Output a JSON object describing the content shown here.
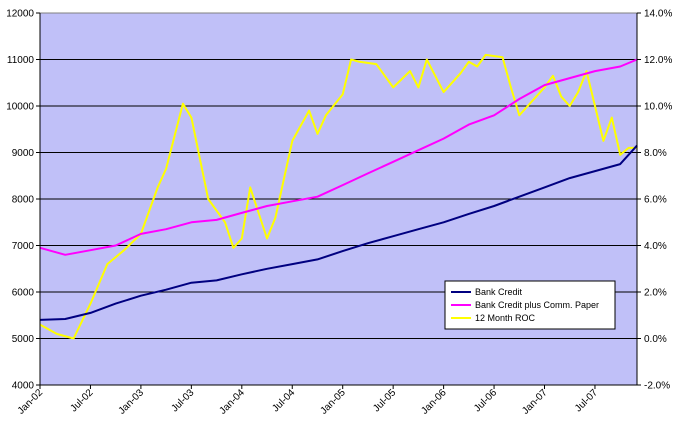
{
  "chart_data": {
    "type": "line",
    "title": "",
    "xlabel": "",
    "ylabel": "",
    "ylim": [
      4000,
      12000
    ],
    "y2lim": [
      -2.0,
      14.0
    ],
    "yticks": [
      "4000",
      "5000",
      "6000",
      "7000",
      "8000",
      "9000",
      "10000",
      "11000",
      "12000"
    ],
    "y2ticks": [
      "-2.0%",
      "0.0%",
      "2.0%",
      "4.0%",
      "6.0%",
      "8.0%",
      "10.0%",
      "12.0%",
      "14.0%"
    ],
    "xticks": [
      "Jan-02",
      "Jul-02",
      "Jan-03",
      "Jul-03",
      "Jan-04",
      "Jul-04",
      "Jan-05",
      "Jul-05",
      "Jan-06",
      "Jul-06",
      "Jan-07",
      "Jul-07"
    ],
    "x_range_months": [
      0,
      71
    ],
    "grid": "horizontal",
    "legend_position": "lower-right",
    "colors": {
      "plot_background": "#c0c0f8",
      "grid": "#000000",
      "bank_credit": "#000080",
      "bank_credit_cp": "#ff00ff",
      "roc": "#ffff00"
    },
    "series": [
      {
        "name": "Bank Credit",
        "axis": "left",
        "x": [
          0,
          3,
          6,
          9,
          12,
          15,
          18,
          21,
          24,
          27,
          30,
          33,
          36,
          39,
          42,
          45,
          48,
          51,
          54,
          57,
          60,
          63,
          66,
          69,
          71
        ],
        "values": [
          5400,
          5420,
          5550,
          5750,
          5920,
          6050,
          6200,
          6250,
          6380,
          6500,
          6600,
          6700,
          6880,
          7050,
          7200,
          7350,
          7500,
          7680,
          7850,
          8050,
          8250,
          8450,
          8600,
          8750,
          9150
        ]
      },
      {
        "name": "Bank Credit plus Comm. Paper",
        "axis": "left",
        "x": [
          0,
          3,
          6,
          9,
          12,
          15,
          18,
          21,
          24,
          27,
          30,
          33,
          36,
          39,
          42,
          45,
          48,
          51,
          54,
          57,
          60,
          63,
          66,
          69,
          71
        ],
        "values": [
          6950,
          6800,
          6900,
          7000,
          7250,
          7350,
          7500,
          7550,
          7700,
          7850,
          7950,
          8050,
          8300,
          8550,
          8800,
          9050,
          9300,
          9600,
          9800,
          10150,
          10450,
          10600,
          10750,
          10850,
          11000
        ]
      },
      {
        "name": "12 Month ROC",
        "axis": "right",
        "x": [
          0,
          2,
          4,
          6,
          8,
          10,
          12,
          14,
          15,
          17,
          18,
          20,
          22,
          23,
          24,
          25,
          27,
          28,
          30,
          32,
          33,
          34,
          36,
          37,
          38,
          40,
          42,
          44,
          45,
          46,
          48,
          50,
          51,
          52,
          53,
          55,
          56,
          57,
          58,
          60,
          61,
          62,
          63,
          64,
          65,
          66,
          67,
          68,
          69,
          70,
          71
        ],
        "values": [
          0.6,
          0.2,
          0.0,
          1.5,
          3.2,
          3.8,
          4.5,
          6.5,
          7.3,
          10.1,
          9.5,
          6.0,
          5.0,
          3.9,
          4.3,
          6.5,
          4.3,
          5.2,
          8.5,
          9.8,
          8.8,
          9.6,
          10.5,
          12.0,
          11.9,
          11.8,
          10.8,
          11.5,
          10.8,
          12.0,
          10.6,
          11.4,
          11.9,
          11.7,
          12.2,
          12.1,
          10.8,
          9.6,
          10.0,
          10.8,
          11.3,
          10.4,
          10.0,
          10.6,
          11.5,
          10.0,
          8.5,
          9.5,
          7.9,
          8.2,
          8.2
        ]
      }
    ]
  }
}
